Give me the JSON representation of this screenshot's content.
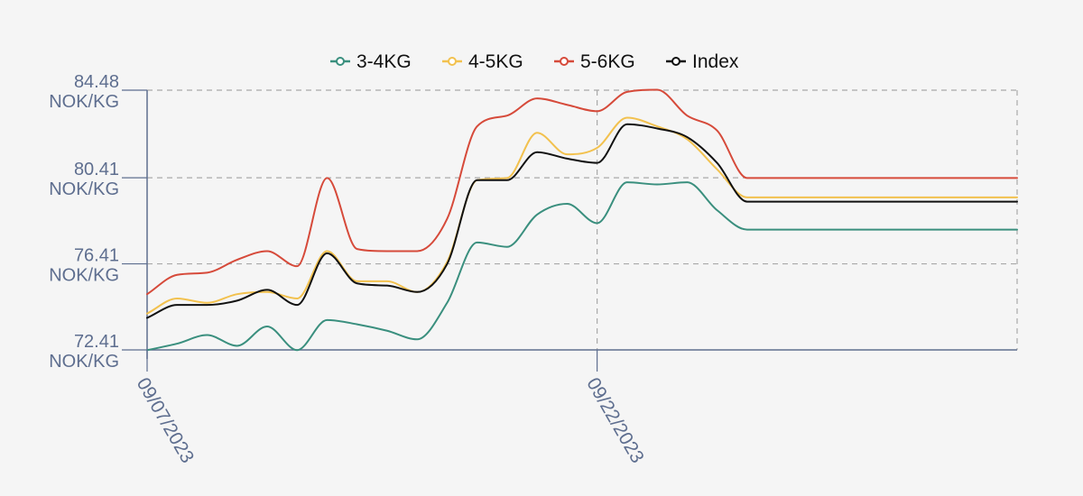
{
  "chart_data": {
    "type": "line",
    "x": [
      "09/07/2023",
      "09/08/2023",
      "09/09/2023",
      "09/10/2023",
      "09/11/2023",
      "09/12/2023",
      "09/13/2023",
      "09/14/2023",
      "09/15/2023",
      "09/16/2023",
      "09/17/2023",
      "09/18/2023",
      "09/19/2023",
      "09/20/2023",
      "09/21/2023",
      "09/22/2023",
      "09/23/2023",
      "09/24/2023",
      "09/25/2023",
      "09/26/2023",
      "09/27/2023",
      "09/28/2023",
      "09/29/2023",
      "09/30/2023",
      "10/01/2023",
      "10/02/2023",
      "10/03/2023",
      "10/04/2023",
      "10/05/2023",
      "10/06/2023"
    ],
    "xticks": [
      "09/07/2023",
      "09/22/2023"
    ],
    "yticks": [
      {
        "value": 72.41,
        "label": "72.41",
        "unit": "NOK/KG"
      },
      {
        "value": 76.41,
        "label": "76.41",
        "unit": "NOK/KG"
      },
      {
        "value": 80.41,
        "label": "80.41",
        "unit": "NOK/KG"
      },
      {
        "value": 84.48,
        "label": "84.48",
        "unit": "NOK/KG"
      }
    ],
    "ylim": [
      72.41,
      84.48
    ],
    "grid": true,
    "legend_position": "top-center",
    "series": [
      {
        "name": "3-4KG",
        "color": "#3a8f7e",
        "values": [
          72.4,
          72.7,
          73.1,
          72.6,
          73.5,
          72.4,
          73.8,
          73.6,
          73.3,
          72.9,
          74.6,
          77.4,
          77.2,
          78.7,
          79.2,
          78.3,
          80.2,
          80.1,
          80.2,
          78.9,
          78.0,
          78.0,
          78.0,
          78.0,
          78.0,
          78.0,
          78.0,
          78.0,
          78.0,
          78.0
        ]
      },
      {
        "name": "4-5KG",
        "color": "#f2c14e",
        "values": [
          74.1,
          74.8,
          74.6,
          75.0,
          75.1,
          74.8,
          77.0,
          75.6,
          75.6,
          75.1,
          76.5,
          80.3,
          80.4,
          82.5,
          81.5,
          81.8,
          83.2,
          82.8,
          82.2,
          80.8,
          79.5,
          79.5,
          79.5,
          79.5,
          79.5,
          79.5,
          79.5,
          79.5,
          79.5,
          79.5
        ]
      },
      {
        "name": "5-6KG",
        "color": "#d64a3a",
        "values": [
          75.0,
          75.9,
          76.0,
          76.6,
          77.0,
          76.3,
          80.4,
          77.1,
          77.0,
          77.0,
          78.5,
          82.8,
          83.3,
          84.1,
          83.8,
          83.5,
          84.4,
          84.5,
          83.3,
          82.6,
          80.4,
          80.4,
          80.4,
          80.4,
          80.4,
          80.4,
          80.4,
          80.4,
          80.4,
          80.4
        ]
      },
      {
        "name": "Index",
        "color": "#111111",
        "values": [
          73.9,
          74.5,
          74.5,
          74.7,
          75.2,
          74.5,
          76.9,
          75.5,
          75.4,
          75.1,
          76.4,
          80.3,
          80.3,
          81.6,
          81.3,
          81.1,
          82.9,
          82.7,
          82.3,
          81.1,
          79.3,
          79.3,
          79.3,
          79.3,
          79.3,
          79.3,
          79.3,
          79.3,
          79.3,
          79.3
        ]
      }
    ]
  }
}
